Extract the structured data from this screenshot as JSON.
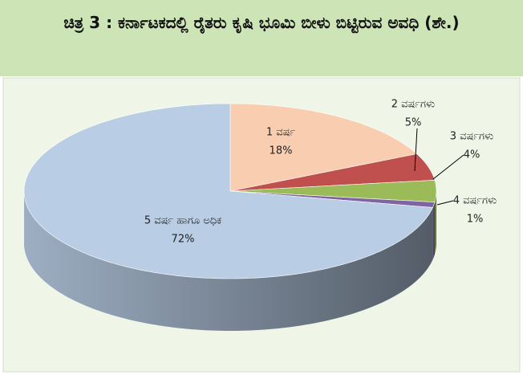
{
  "chart_data": {
    "type": "pie",
    "title": "ಚಿತ್ರ 3 : ಕರ್ನಾಟಕದಲ್ಲಿ ರೈತರು ಕೃಷಿ ಭೂಮಿ ಬೀಳು ಬಿಟ್ಟಿರುವ ಅವಧಿ (ಶೇ.)",
    "categories": [
      "1 ವರ್ಷ",
      "2 ವರ್ಷಗಳು",
      "3 ವರ್ಷಗಳು",
      "4 ವರ್ಷಗಳು",
      "5 ವರ್ಷ ಹಾಗೂ ಅಧಿಕ"
    ],
    "values": [
      18,
      5,
      4,
      1,
      72
    ],
    "value_labels": [
      "18%",
      "5%",
      "4%",
      "1%",
      "72%"
    ],
    "colors": [
      "#f9cdb0",
      "#c0504d",
      "#9bbb59",
      "#8064a2",
      "#b9cde5"
    ]
  }
}
